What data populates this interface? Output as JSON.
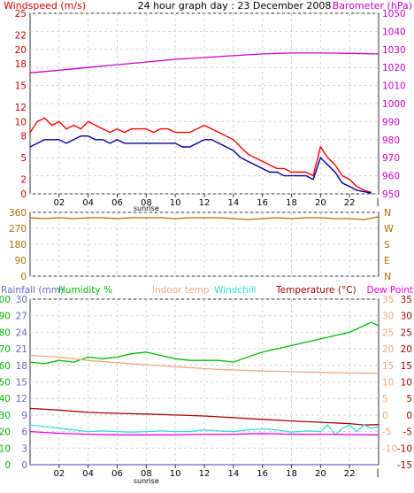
{
  "chart_data": [
    {
      "type": "line",
      "title": "24 hour graph day : 23 December 2008",
      "x_ticks": [
        "02",
        "04",
        "06",
        "08",
        "10",
        "12",
        "14",
        "16",
        "18",
        "20",
        "22"
      ],
      "x_annotation": "sunrise",
      "x_annotation_hour": 8,
      "end_tick": "|",
      "grid": true,
      "left_axis": {
        "label": "Windspeed (m/s)",
        "ticks": [
          0,
          2,
          5,
          8,
          10,
          12,
          15,
          18,
          20,
          22,
          25
        ],
        "range": [
          0,
          25
        ]
      },
      "right_axis": {
        "label": "Barometer (hPa)",
        "ticks": [
          950,
          960,
          970,
          980,
          990,
          1000,
          1010,
          1020,
          1030,
          1040,
          1050
        ],
        "range": [
          950,
          1050
        ]
      },
      "series": [
        {
          "name": "Windspeed",
          "axis": "left",
          "color": "#ff0000",
          "x": [
            0,
            0.5,
            1,
            1.5,
            2,
            2.5,
            3,
            3.5,
            4,
            4.5,
            5,
            5.5,
            6,
            6.5,
            7,
            7.5,
            8,
            8.5,
            9,
            9.5,
            10,
            10.5,
            11,
            11.5,
            12,
            12.5,
            13,
            13.5,
            14,
            14.5,
            15,
            15.5,
            16,
            16.5,
            17,
            17.5,
            18,
            18.5,
            19,
            19.5,
            20,
            20.5,
            21,
            21.5,
            22,
            22.5,
            23,
            23.5
          ],
          "y": [
            8.5,
            10,
            10.5,
            9.5,
            10,
            9,
            9.5,
            9,
            10,
            9.5,
            9,
            8.5,
            9,
            8.5,
            9,
            9,
            9,
            8.5,
            9,
            9,
            8.5,
            8.5,
            8.5,
            9,
            9.5,
            9,
            8.5,
            8,
            7.5,
            6.5,
            5.5,
            5,
            4.5,
            4,
            3.5,
            3.5,
            3,
            3,
            3,
            2.5,
            6.5,
            5,
            4,
            2.5,
            2,
            1,
            0.5,
            0.2
          ]
        },
        {
          "name": "Windspeed average",
          "axis": "left",
          "color": "#000099",
          "x": [
            0,
            0.5,
            1,
            1.5,
            2,
            2.5,
            3,
            3.5,
            4,
            4.5,
            5,
            5.5,
            6,
            6.5,
            7,
            7.5,
            8,
            8.5,
            9,
            9.5,
            10,
            10.5,
            11,
            11.5,
            12,
            12.5,
            13,
            13.5,
            14,
            14.5,
            15,
            15.5,
            16,
            16.5,
            17,
            17.5,
            18,
            18.5,
            19,
            19.5,
            20,
            20.5,
            21,
            21.5,
            22,
            22.5,
            23,
            23.5
          ],
          "y": [
            6.5,
            7,
            7.5,
            7.5,
            7.5,
            7,
            7.5,
            8,
            8,
            7.5,
            7.5,
            7,
            7.5,
            7,
            7,
            7,
            7,
            7,
            7,
            7,
            7,
            6.5,
            6.5,
            7,
            7.5,
            7.5,
            7,
            6.5,
            6,
            5,
            4.5,
            4,
            3.5,
            3,
            3,
            2.5,
            2.5,
            2.5,
            2.5,
            2,
            5,
            4,
            3,
            1.5,
            1,
            0.5,
            0.3,
            0.1
          ]
        },
        {
          "name": "Barometer",
          "axis": "right",
          "color": "#cc00cc",
          "x": [
            0,
            2,
            4,
            6,
            8,
            10,
            12,
            14,
            16,
            18,
            20,
            22,
            24
          ],
          "y": [
            1017,
            1018.5,
            1020,
            1021.5,
            1023,
            1024.5,
            1025.5,
            1026.5,
            1027.5,
            1028,
            1028,
            1027.8,
            1027.5
          ]
        }
      ]
    },
    {
      "type": "line",
      "left_axis": {
        "ticks": [
          0,
          90,
          180,
          270,
          360
        ],
        "range": [
          0,
          360
        ]
      },
      "right_axis": {
        "ticks": [
          "N",
          "W",
          "S",
          "E",
          "N"
        ]
      },
      "grid": true,
      "series": [
        {
          "name": "Wind direction",
          "color": "#b36b00",
          "x": [
            0,
            1,
            2,
            3,
            4,
            5,
            6,
            7,
            8,
            9,
            10,
            11,
            12,
            13,
            14,
            15,
            16,
            17,
            18,
            19,
            20,
            21,
            22,
            23,
            24
          ],
          "y": [
            330,
            325,
            330,
            325,
            330,
            330,
            325,
            330,
            330,
            330,
            325,
            330,
            330,
            330,
            325,
            320,
            325,
            330,
            325,
            330,
            330,
            325,
            325,
            320,
            335
          ]
        }
      ]
    },
    {
      "type": "line",
      "x_ticks": [
        "02",
        "04",
        "06",
        "08",
        "10",
        "12",
        "14",
        "16",
        "18",
        "20",
        "22"
      ],
      "x_annotation": "sunrise",
      "x_annotation_hour": 8,
      "end_tick": "|",
      "grid": true,
      "legend": [
        "Rainfall (mm)",
        "Humidity %",
        "Indoor temp",
        "Windchill",
        "Temperature (°C)",
        "Dew Point"
      ],
      "humidity_axis": {
        "ticks": [
          0,
          10,
          20,
          30,
          40,
          50,
          60,
          70,
          80,
          90,
          100
        ],
        "range": [
          0,
          100
        ]
      },
      "rainfall_axis": {
        "ticks": [
          0,
          3,
          6,
          9,
          12,
          15,
          18,
          21,
          24,
          27,
          30
        ],
        "range": [
          0,
          30
        ]
      },
      "indoor_axis": {
        "ticks": [
          -10,
          -5,
          0,
          5,
          10,
          15,
          20,
          25,
          30,
          35
        ],
        "range": [
          -15,
          35
        ]
      },
      "temp_axis": {
        "ticks": [
          -15,
          -10,
          -5,
          0,
          5,
          10,
          15,
          20,
          25,
          30,
          35
        ],
        "range": [
          -15,
          35
        ]
      },
      "series": [
        {
          "name": "Humidity %",
          "axis": "humidity",
          "color": "#00bb00",
          "x": [
            0,
            1,
            2,
            3,
            4,
            5,
            6,
            7,
            8,
            9,
            10,
            11,
            12,
            13,
            14,
            15,
            16,
            17,
            18,
            19,
            20,
            21,
            22,
            23,
            23.5,
            24
          ],
          "y": [
            62,
            61,
            63,
            62,
            65,
            64,
            65,
            67,
            68,
            66,
            64,
            63,
            63,
            63,
            62,
            65,
            68,
            70,
            72,
            74,
            76,
            78,
            80,
            84,
            86,
            84
          ]
        },
        {
          "name": "Indoor temp",
          "axis": "indoor",
          "color": "#f0a880",
          "x": [
            0,
            2,
            4,
            6,
            8,
            10,
            12,
            14,
            16,
            18,
            20,
            22,
            24
          ],
          "y": [
            18,
            17.5,
            16.5,
            15.8,
            15.2,
            14.6,
            14,
            13.6,
            13.3,
            13.1,
            12.9,
            12.7,
            12.6
          ]
        },
        {
          "name": "Temperature (°C)",
          "axis": "temp",
          "color": "#aa0000",
          "x": [
            0,
            2,
            4,
            6,
            8,
            10,
            12,
            14,
            16,
            18,
            20,
            22,
            23,
            24
          ],
          "y": [
            2,
            1.5,
            0.8,
            0.5,
            0.3,
            0,
            -0.3,
            -0.8,
            -1.3,
            -1.8,
            -2.2,
            -2.6,
            -3,
            -2.9
          ]
        },
        {
          "name": "Windchill",
          "axis": "temp",
          "color": "#33dddd",
          "x": [
            0,
            1,
            2,
            3,
            4,
            5,
            6,
            7,
            8,
            9,
            10,
            11,
            12,
            13,
            14,
            15,
            16,
            17,
            18,
            19,
            20,
            20.5,
            21,
            21.5,
            22,
            22.5,
            23,
            23.5,
            24
          ],
          "y": [
            -3,
            -3.5,
            -4,
            -4.5,
            -5,
            -4.8,
            -5,
            -5.2,
            -5,
            -4.8,
            -5,
            -5,
            -4.5,
            -4.8,
            -5,
            -4.5,
            -4.2,
            -4.5,
            -5.2,
            -4.8,
            -5,
            -3,
            -6,
            -4,
            -3,
            -5,
            -3,
            -4,
            -3.5
          ]
        },
        {
          "name": "Dew Point",
          "axis": "temp",
          "color": "#ee00ee",
          "x": [
            0,
            2,
            4,
            6,
            8,
            10,
            12,
            14,
            16,
            18,
            20,
            22,
            24
          ],
          "y": [
            -5,
            -5.5,
            -5.8,
            -6,
            -6,
            -6,
            -5.8,
            -5.8,
            -5.6,
            -5.8,
            -5.8,
            -5.9,
            -6
          ]
        },
        {
          "name": "Rainfall (mm)",
          "axis": "rainfall",
          "color": "#6666cc",
          "x": [
            0,
            24
          ],
          "y": [
            0,
            0
          ]
        }
      ]
    }
  ],
  "colors": {
    "windspeed_label": "#cc0000",
    "barometer_label": "#cc00cc",
    "left_ticks_red": "#cc0000",
    "left_ticks_orange": "#b36b00",
    "rainfall": "#6666cc",
    "humidity": "#00bb00",
    "indoor": "#f0a880",
    "windchill": "#33dddd",
    "temperature": "#aa0000",
    "dewpoint": "#ee00ee",
    "grid": "#c8d4dc",
    "frame": "#333333"
  }
}
